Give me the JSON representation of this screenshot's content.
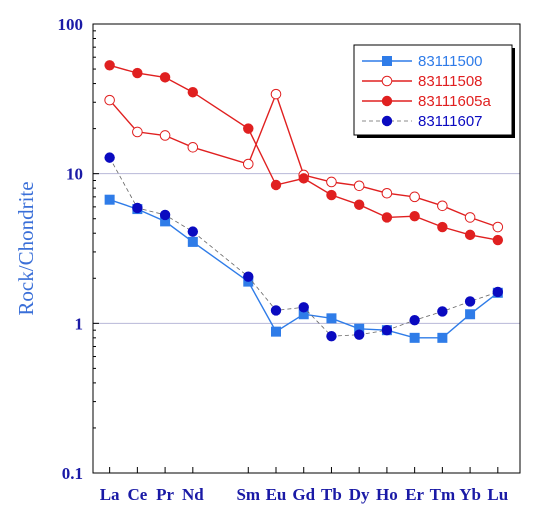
{
  "chart_data": {
    "type": "line",
    "title": "",
    "xlabel": "",
    "ylabel": "Rock/Chondrite",
    "yscale": "log",
    "ylim": [
      0.1,
      100
    ],
    "yticks": [
      "0.1",
      "1",
      "10",
      "100"
    ],
    "grid": "horizontal gridlines at decades",
    "legend_position": "top-right",
    "categories": [
      "La",
      "Ce",
      "Pr",
      "Nd",
      "Sm",
      "Eu",
      "Gd",
      "Tb",
      "Dy",
      "Ho",
      "Er",
      "Tm",
      "Yb",
      "Lu"
    ],
    "category_positions": [
      57,
      58,
      59,
      60,
      62,
      63,
      64,
      65,
      66,
      67,
      68,
      69,
      70,
      71
    ],
    "series": [
      {
        "name": "83111500",
        "color": "#2f7ce8",
        "marker": "filled-square",
        "line": "solid",
        "values": [
          6.7,
          5.8,
          4.8,
          3.5,
          1.9,
          0.88,
          1.15,
          1.08,
          0.92,
          0.9,
          0.8,
          0.8,
          1.15,
          1.6
        ]
      },
      {
        "name": "83111508",
        "color": "#e02020",
        "marker": "open-circle",
        "line": "solid",
        "values": [
          31,
          19,
          18,
          15,
          11.6,
          34,
          9.8,
          8.8,
          8.3,
          7.4,
          7.0,
          6.1,
          5.1,
          4.4
        ]
      },
      {
        "name": "83111605a",
        "color": "#e02020",
        "marker": "filled-circle",
        "line": "solid",
        "values": [
          53,
          47,
          44,
          35,
          20,
          8.4,
          9.3,
          7.2,
          6.2,
          5.1,
          5.2,
          4.4,
          3.9,
          3.6
        ]
      },
      {
        "name": "83111607",
        "color": "#0a0ac0",
        "marker": "filled-circle",
        "line": "dashed",
        "values": [
          12.8,
          5.9,
          5.3,
          4.1,
          2.05,
          1.22,
          1.28,
          0.82,
          0.84,
          0.9,
          1.05,
          1.2,
          1.4,
          1.62
        ]
      }
    ]
  }
}
